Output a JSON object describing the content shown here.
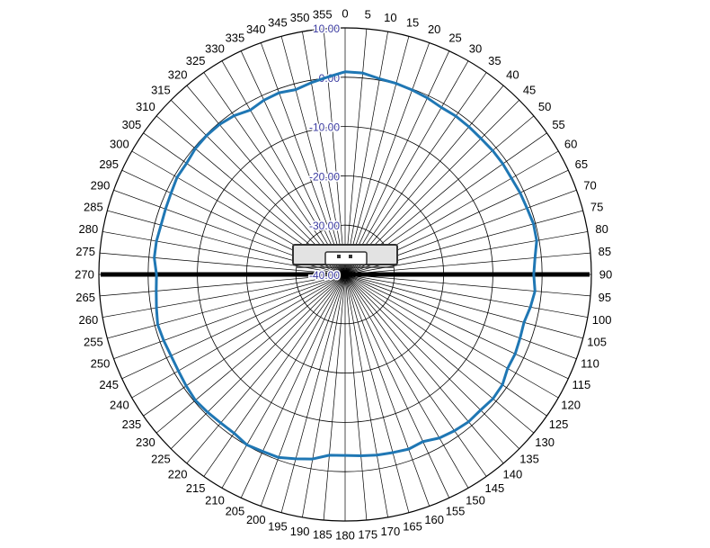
{
  "colors": {
    "background": "#ffffff",
    "grid": "#000000",
    "series_line": "#1f77b4",
    "tick_label": "#3a3aa0",
    "horizon_line": "#000000",
    "device_fill": "#e3e3e3",
    "device_stroke": "#333333"
  },
  "chart_data": {
    "type": "polar-line",
    "title": "",
    "angle_unit": "degrees",
    "angle_zero": "top",
    "angle_direction": "clockwise",
    "angle_step": 5,
    "angle_labels": [
      "0",
      "5",
      "10",
      "15",
      "20",
      "25",
      "30",
      "35",
      "40",
      "45",
      "50",
      "55",
      "60",
      "65",
      "70",
      "75",
      "80",
      "85",
      "90",
      "95",
      "100",
      "105",
      "110",
      "115",
      "120",
      "125",
      "130",
      "135",
      "140",
      "145",
      "150",
      "155",
      "160",
      "165",
      "170",
      "175",
      "180",
      "185",
      "190",
      "195",
      "200",
      "205",
      "210",
      "215",
      "220",
      "225",
      "230",
      "235",
      "240",
      "245",
      "250",
      "255",
      "260",
      "265",
      "270",
      "275",
      "280",
      "285",
      "290",
      "295",
      "300",
      "305",
      "310",
      "315",
      "320",
      "325",
      "330",
      "335",
      "340",
      "345",
      "350",
      "355"
    ],
    "radial_range": [
      -40,
      10
    ],
    "radial_ticks": [
      10,
      0,
      -10,
      -20,
      -30,
      -40
    ],
    "radial_tick_labels": [
      "10.00",
      "0.00",
      "-10.00",
      "-20.00",
      "-30.00",
      "-40.00"
    ],
    "grid": true,
    "legend": "none",
    "series": [
      {
        "angles": [
          0,
          5,
          10,
          15,
          20,
          25,
          30,
          35,
          40,
          45,
          50,
          55,
          60,
          65,
          70,
          75,
          80,
          85,
          90,
          95,
          100,
          105,
          110,
          115,
          120,
          125,
          130,
          135,
          140,
          145,
          150,
          155,
          160,
          165,
          170,
          175,
          180,
          185,
          190,
          195,
          200,
          205,
          210,
          215,
          220,
          225,
          230,
          235,
          240,
          245,
          250,
          255,
          260,
          265,
          270,
          275,
          280,
          285,
          290,
          295,
          300,
          305,
          310,
          315,
          320,
          325,
          330,
          335,
          340,
          345,
          350,
          355
        ],
        "values": [
          1.1,
          1.0,
          0.3,
          0.1,
          -0.2,
          -0.5,
          -0.9,
          -0.8,
          -0.9,
          -1.0,
          -0.9,
          -0.9,
          -1.0,
          -0.8,
          -0.7,
          -0.4,
          -0.5,
          -1.3,
          -1.7,
          -1.3,
          -1.8,
          -2.4,
          -2.2,
          -1.9,
          -1.9,
          -1.0,
          -0.8,
          -1.1,
          -1.0,
          -1.3,
          -1.7,
          -2.6,
          -2.3,
          -2.6,
          -2.8,
          -3.1,
          -3.3,
          -3.2,
          -2.0,
          -1.3,
          -0.5,
          -0.4,
          -0.1,
          -0.7,
          -0.7,
          -0.5,
          -0.3,
          -0.6,
          -0.9,
          -1.0,
          -0.8,
          -0.6,
          -1.1,
          -1.5,
          -1.7,
          -1.1,
          -1.1,
          -1.3,
          -1.2,
          -1.0,
          -0.6,
          -0.7,
          -0.3,
          -0.2,
          -0.3,
          -0.7,
          -1.5,
          -1.0,
          -0.8,
          -1.2,
          -0.5,
          0.2
        ]
      }
    ]
  }
}
